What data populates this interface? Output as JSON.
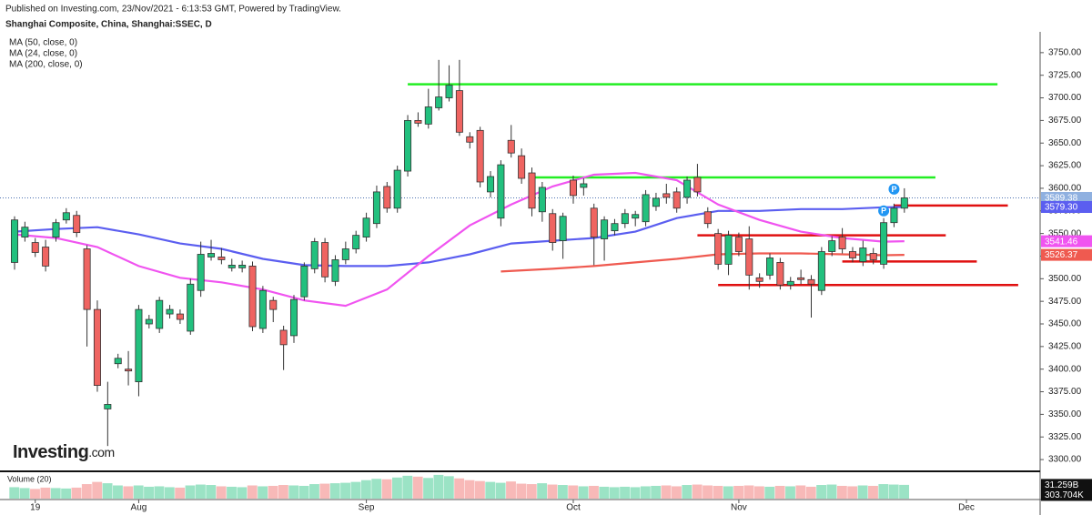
{
  "chart_data": {
    "type": "candlestick",
    "subtitle": "Published on Investing.com, 23/Nov/2021 - 6:13:53 GMT, Powered by TradingView.",
    "title": "Shanghai Composite, China, Shanghai:SSEC, D",
    "logo": {
      "name": "Investing",
      "suffix": ".com"
    },
    "up_color": "#22c07e",
    "down_color": "#ef6461",
    "open": [
      3518,
      3546,
      3540,
      3535,
      3546,
      3565,
      3570,
      3533,
      3466,
      3356,
      3406,
      3400,
      3386,
      3450,
      3445,
      3461,
      3461,
      3442,
      3487,
      3524,
      3524,
      3512,
      3512,
      3514,
      3445,
      3476,
      3443,
      3437,
      3480,
      3511,
      3540,
      3497,
      3521,
      3533,
      3546,
      3561,
      3602,
      3578,
      3619,
      3675,
      3671,
      3689,
      3700,
      3708,
      3657,
      3664,
      3596,
      3567,
      3653,
      3636,
      3617,
      3574,
      3572,
      3542,
      3609,
      3601,
      3578,
      3544,
      3553,
      3561,
      3567,
      3563,
      3580,
      3594,
      3596,
      3590,
      3612,
      3574,
      3550,
      3516,
      3546,
      3544,
      3501,
      3504,
      3518,
      3493,
      3501,
      3499,
      3487,
      3530,
      3546,
      3530,
      3519,
      3528,
      3516,
      3562,
      3578
    ],
    "high": [
      3569,
      3563,
      3545,
      3543,
      3566,
      3578,
      3575,
      3537,
      3476,
      3386,
      3417,
      3420,
      3471,
      3460,
      3480,
      3471,
      3466,
      3500,
      3541,
      3543,
      3534,
      3522,
      3520,
      3519,
      3492,
      3480,
      3448,
      3482,
      3518,
      3545,
      3545,
      3526,
      3541,
      3553,
      3573,
      3603,
      3607,
      3625,
      3681,
      3684,
      3710,
      3742,
      3736,
      3742,
      3662,
      3668,
      3619,
      3631,
      3670,
      3644,
      3623,
      3607,
      3577,
      3573,
      3614,
      3611,
      3583,
      3569,
      3566,
      3577,
      3575,
      3598,
      3595,
      3605,
      3601,
      3613,
      3627,
      3579,
      3555,
      3553,
      3551,
      3558,
      3506,
      3528,
      3523,
      3502,
      3510,
      3504,
      3535,
      3547,
      3556,
      3535,
      3542,
      3534,
      3567,
      3583,
      3600
    ],
    "low": [
      3510,
      3541,
      3524,
      3508,
      3541,
      3561,
      3546,
      3425,
      3375,
      3315,
      3401,
      3382,
      3370,
      3445,
      3440,
      3456,
      3450,
      3438,
      3480,
      3520,
      3516,
      3508,
      3507,
      3442,
      3440,
      3452,
      3399,
      3429,
      3476,
      3506,
      3496,
      3492,
      3516,
      3528,
      3541,
      3556,
      3573,
      3573,
      3613,
      3668,
      3666,
      3686,
      3696,
      3658,
      3644,
      3601,
      3590,
      3558,
      3634,
      3605,
      3569,
      3563,
      3531,
      3522,
      3583,
      3592,
      3515,
      3520,
      3548,
      3556,
      3558,
      3558,
      3575,
      3583,
      3573,
      3583,
      3591,
      3556,
      3510,
      3504,
      3525,
      3488,
      3490,
      3499,
      3488,
      3488,
      3494,
      3457,
      3482,
      3525,
      3528,
      3518,
      3514,
      3516,
      3511,
      3557,
      3573
    ],
    "close": [
      3565,
      3557,
      3529,
      3514,
      3562,
      3573,
      3551,
      3466,
      3382,
      3361,
      3412,
      3398,
      3466,
      3455,
      3476,
      3466,
      3455,
      3494,
      3527,
      3528,
      3521,
      3515,
      3515,
      3447,
      3487,
      3466,
      3427,
      3477,
      3514,
      3541,
      3502,
      3521,
      3533,
      3548,
      3567,
      3596,
      3578,
      3620,
      3675,
      3672,
      3690,
      3701,
      3714,
      3662,
      3651,
      3607,
      3613,
      3626,
      3639,
      3611,
      3578,
      3601,
      3540,
      3569,
      3592,
      3605,
      3546,
      3565,
      3561,
      3572,
      3571,
      3593,
      3589,
      3590,
      3578,
      3609,
      3596,
      3561,
      3516,
      3548,
      3530,
      3504,
      3497,
      3523,
      3493,
      3497,
      3499,
      3494,
      3530,
      3542,
      3533,
      3523,
      3534,
      3521,
      3562,
      3578,
      3589.38
    ],
    "ylim": [
      3287,
      3773
    ],
    "yticks": [
      {
        "value": 3300,
        "label": "3300.00"
      },
      {
        "value": 3325,
        "label": "3325.00"
      },
      {
        "value": 3350,
        "label": "3350.00"
      },
      {
        "value": 3375,
        "label": "3375.00"
      },
      {
        "value": 3400,
        "label": "3400.00"
      },
      {
        "value": 3425,
        "label": "3425.00"
      },
      {
        "value": 3450,
        "label": "3450.00"
      },
      {
        "value": 3475,
        "label": "3475.00"
      },
      {
        "value": 3500,
        "label": "3500.00"
      },
      {
        "value": 3525,
        "label": "3525.00"
      },
      {
        "value": 3550,
        "label": "3550.00"
      },
      {
        "value": 3575,
        "label": "3575.00"
      },
      {
        "value": 3600,
        "label": "3600.00"
      },
      {
        "value": 3625,
        "label": "3625.00"
      },
      {
        "value": 3650,
        "label": "3650.00"
      },
      {
        "value": 3675,
        "label": "3675.00"
      },
      {
        "value": 3700,
        "label": "3700.00"
      },
      {
        "value": 3725,
        "label": "3725.00"
      },
      {
        "value": 3750,
        "label": "3750.00"
      }
    ],
    "xticks": [
      {
        "value": 2,
        "label": "19"
      },
      {
        "value": 12,
        "label": "Aug"
      },
      {
        "value": 34,
        "label": "Sep"
      },
      {
        "value": 54,
        "label": "Oct"
      },
      {
        "value": 70,
        "label": "Nov"
      },
      {
        "value": 92,
        "label": "Dec"
      }
    ],
    "last_price": {
      "value": 3589.38,
      "label": "3589.38",
      "color": "#8fb0e0"
    },
    "series": [
      {
        "name": "MA (50, close, 0)",
        "color": "#5b5ef0",
        "x": [
          0,
          4,
          8,
          12,
          16,
          20,
          24,
          28,
          32,
          36,
          40,
          44,
          48,
          52,
          56,
          60,
          64,
          68,
          72,
          76,
          80,
          84,
          86
        ],
        "values": [
          3552,
          3555,
          3557,
          3549,
          3539,
          3533,
          3522,
          3515,
          3514,
          3514,
          3518,
          3527,
          3539,
          3542,
          3545,
          3552,
          3567,
          3575,
          3575,
          3577,
          3577,
          3579,
          3579.3
        ],
        "price_tag": {
          "value": 3579.3,
          "label": "3579.30"
        }
      },
      {
        "name": "MA (24, close, 0)",
        "color": "#f054f0",
        "x": [
          0,
          4,
          8,
          12,
          16,
          20,
          24,
          28,
          32,
          36,
          40,
          44,
          48,
          52,
          56,
          60,
          64,
          68,
          72,
          76,
          80,
          84,
          86
        ],
        "values": [
          3549,
          3545,
          3535,
          3514,
          3501,
          3496,
          3488,
          3476,
          3470,
          3488,
          3525,
          3559,
          3582,
          3602,
          3615,
          3617,
          3609,
          3582,
          3565,
          3552,
          3545,
          3541,
          3541.46
        ],
        "price_tag": {
          "value": 3541.46,
          "label": "3541.46"
        }
      },
      {
        "name": "MA (200, close, 0)",
        "color": "#ef5a50",
        "x": [
          47,
          52,
          56,
          60,
          64,
          68,
          72,
          76,
          80,
          84,
          86
        ],
        "values": [
          3508,
          3511,
          3514,
          3518,
          3522,
          3527,
          3528,
          3528,
          3527,
          3526,
          3526.37
        ],
        "price_tag": {
          "value": 3526.37,
          "label": "3526.37"
        }
      }
    ],
    "levels": [
      {
        "value": 3715,
        "start": 38,
        "end": 95,
        "color": "#22ee22"
      },
      {
        "value": 3612,
        "start": 50,
        "end": 89,
        "color": "#22ee22"
      },
      {
        "value": 3581,
        "start": 85,
        "end": 96,
        "color": "#e01010"
      },
      {
        "value": 3548,
        "start": 66,
        "end": 90,
        "color": "#e01010"
      },
      {
        "value": 3519,
        "start": 80,
        "end": 93,
        "color": "#e01010"
      },
      {
        "value": 3493,
        "start": 68,
        "end": 97,
        "color": "#e01010"
      }
    ],
    "markers": [
      {
        "label": "P",
        "index": 84,
        "value": 3575
      },
      {
        "label": "P",
        "index": 85,
        "value": 3599
      }
    ],
    "volume": {
      "name": "Volume (20)",
      "ylim": [
        0,
        60
      ],
      "values": [
        26,
        24,
        22,
        25,
        24,
        23,
        25,
        33,
        38,
        35,
        30,
        28,
        30,
        27,
        28,
        26,
        25,
        30,
        32,
        31,
        28,
        27,
        26,
        30,
        28,
        29,
        31,
        30,
        29,
        33,
        34,
        35,
        36,
        38,
        42,
        45,
        44,
        48,
        52,
        50,
        47,
        54,
        51,
        46,
        42,
        40,
        38,
        36,
        39,
        34,
        33,
        35,
        32,
        31,
        30,
        28,
        29,
        27,
        26,
        27,
        26,
        28,
        29,
        30,
        28,
        31,
        32,
        30,
        29,
        28,
        29,
        30,
        28,
        27,
        29,
        28,
        30,
        27,
        31,
        32,
        29,
        28,
        30,
        29,
        33,
        32,
        31.259
      ],
      "tags": [
        {
          "value": 31.259,
          "label": "31.259B"
        },
        {
          "value": 0.000303704,
          "label": "303.704K"
        }
      ]
    }
  }
}
